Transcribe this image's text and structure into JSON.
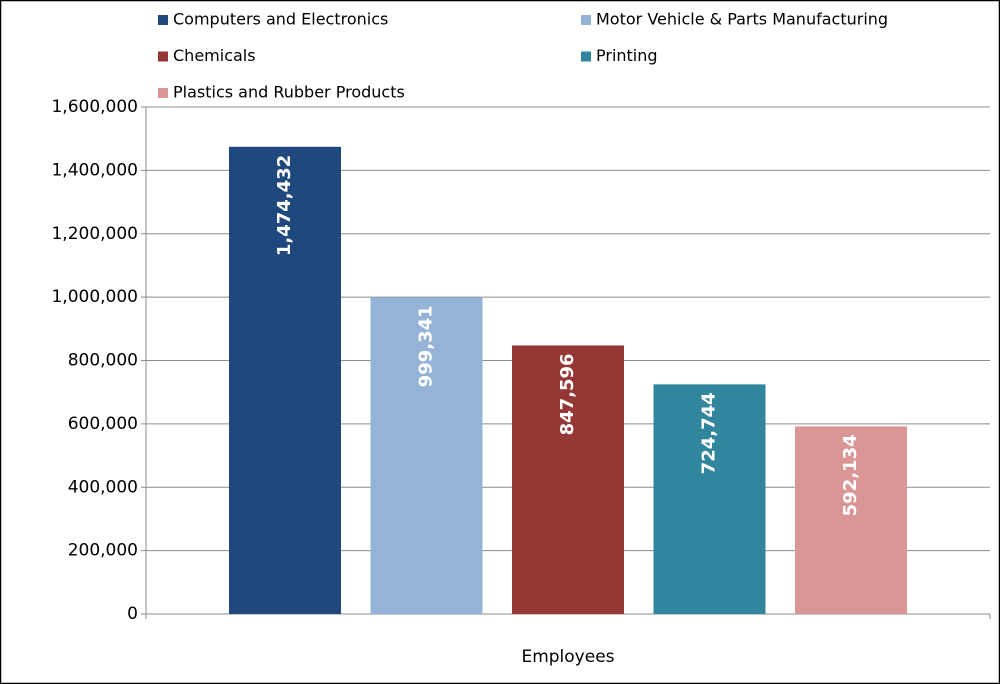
{
  "chart_data": {
    "type": "bar",
    "categories": [
      "Employees"
    ],
    "series": [
      {
        "name": "Computers and Electronics",
        "color": "#1f497d",
        "values": [
          1474432
        ],
        "value_labels": [
          "1,474,432"
        ]
      },
      {
        "name": "Motor Vehicle & Parts Manufacturing",
        "color": "#95b3d7",
        "values": [
          999341
        ],
        "value_labels": [
          "999,341"
        ]
      },
      {
        "name": "Chemicals",
        "color": "#953735",
        "values": [
          847596
        ],
        "value_labels": [
          "847,596"
        ]
      },
      {
        "name": "Printing",
        "color": "#31859c",
        "values": [
          724744
        ],
        "value_labels": [
          "724,744"
        ]
      },
      {
        "name": "Plastics and Rubber Products",
        "color": "#d99694",
        "values": [
          592134
        ],
        "value_labels": [
          "592,134"
        ]
      }
    ],
    "ylim": [
      0,
      1600000
    ],
    "yticks": [
      0,
      {
        "value": 200000,
        "label": "200,000"
      },
      {
        "value": 400000,
        "label": "400,000"
      },
      {
        "value": 600000,
        "label": "600,000"
      },
      {
        "value": 800000,
        "label": "800,000"
      },
      {
        "value": 1000000,
        "label": "1,000,000"
      },
      {
        "value": 1200000,
        "label": "1,200,000"
      },
      {
        "value": 1400000,
        "label": "1,400,000"
      },
      {
        "value": 1600000,
        "label": "1,600,000"
      }
    ],
    "grid": true,
    "legend": "top"
  }
}
